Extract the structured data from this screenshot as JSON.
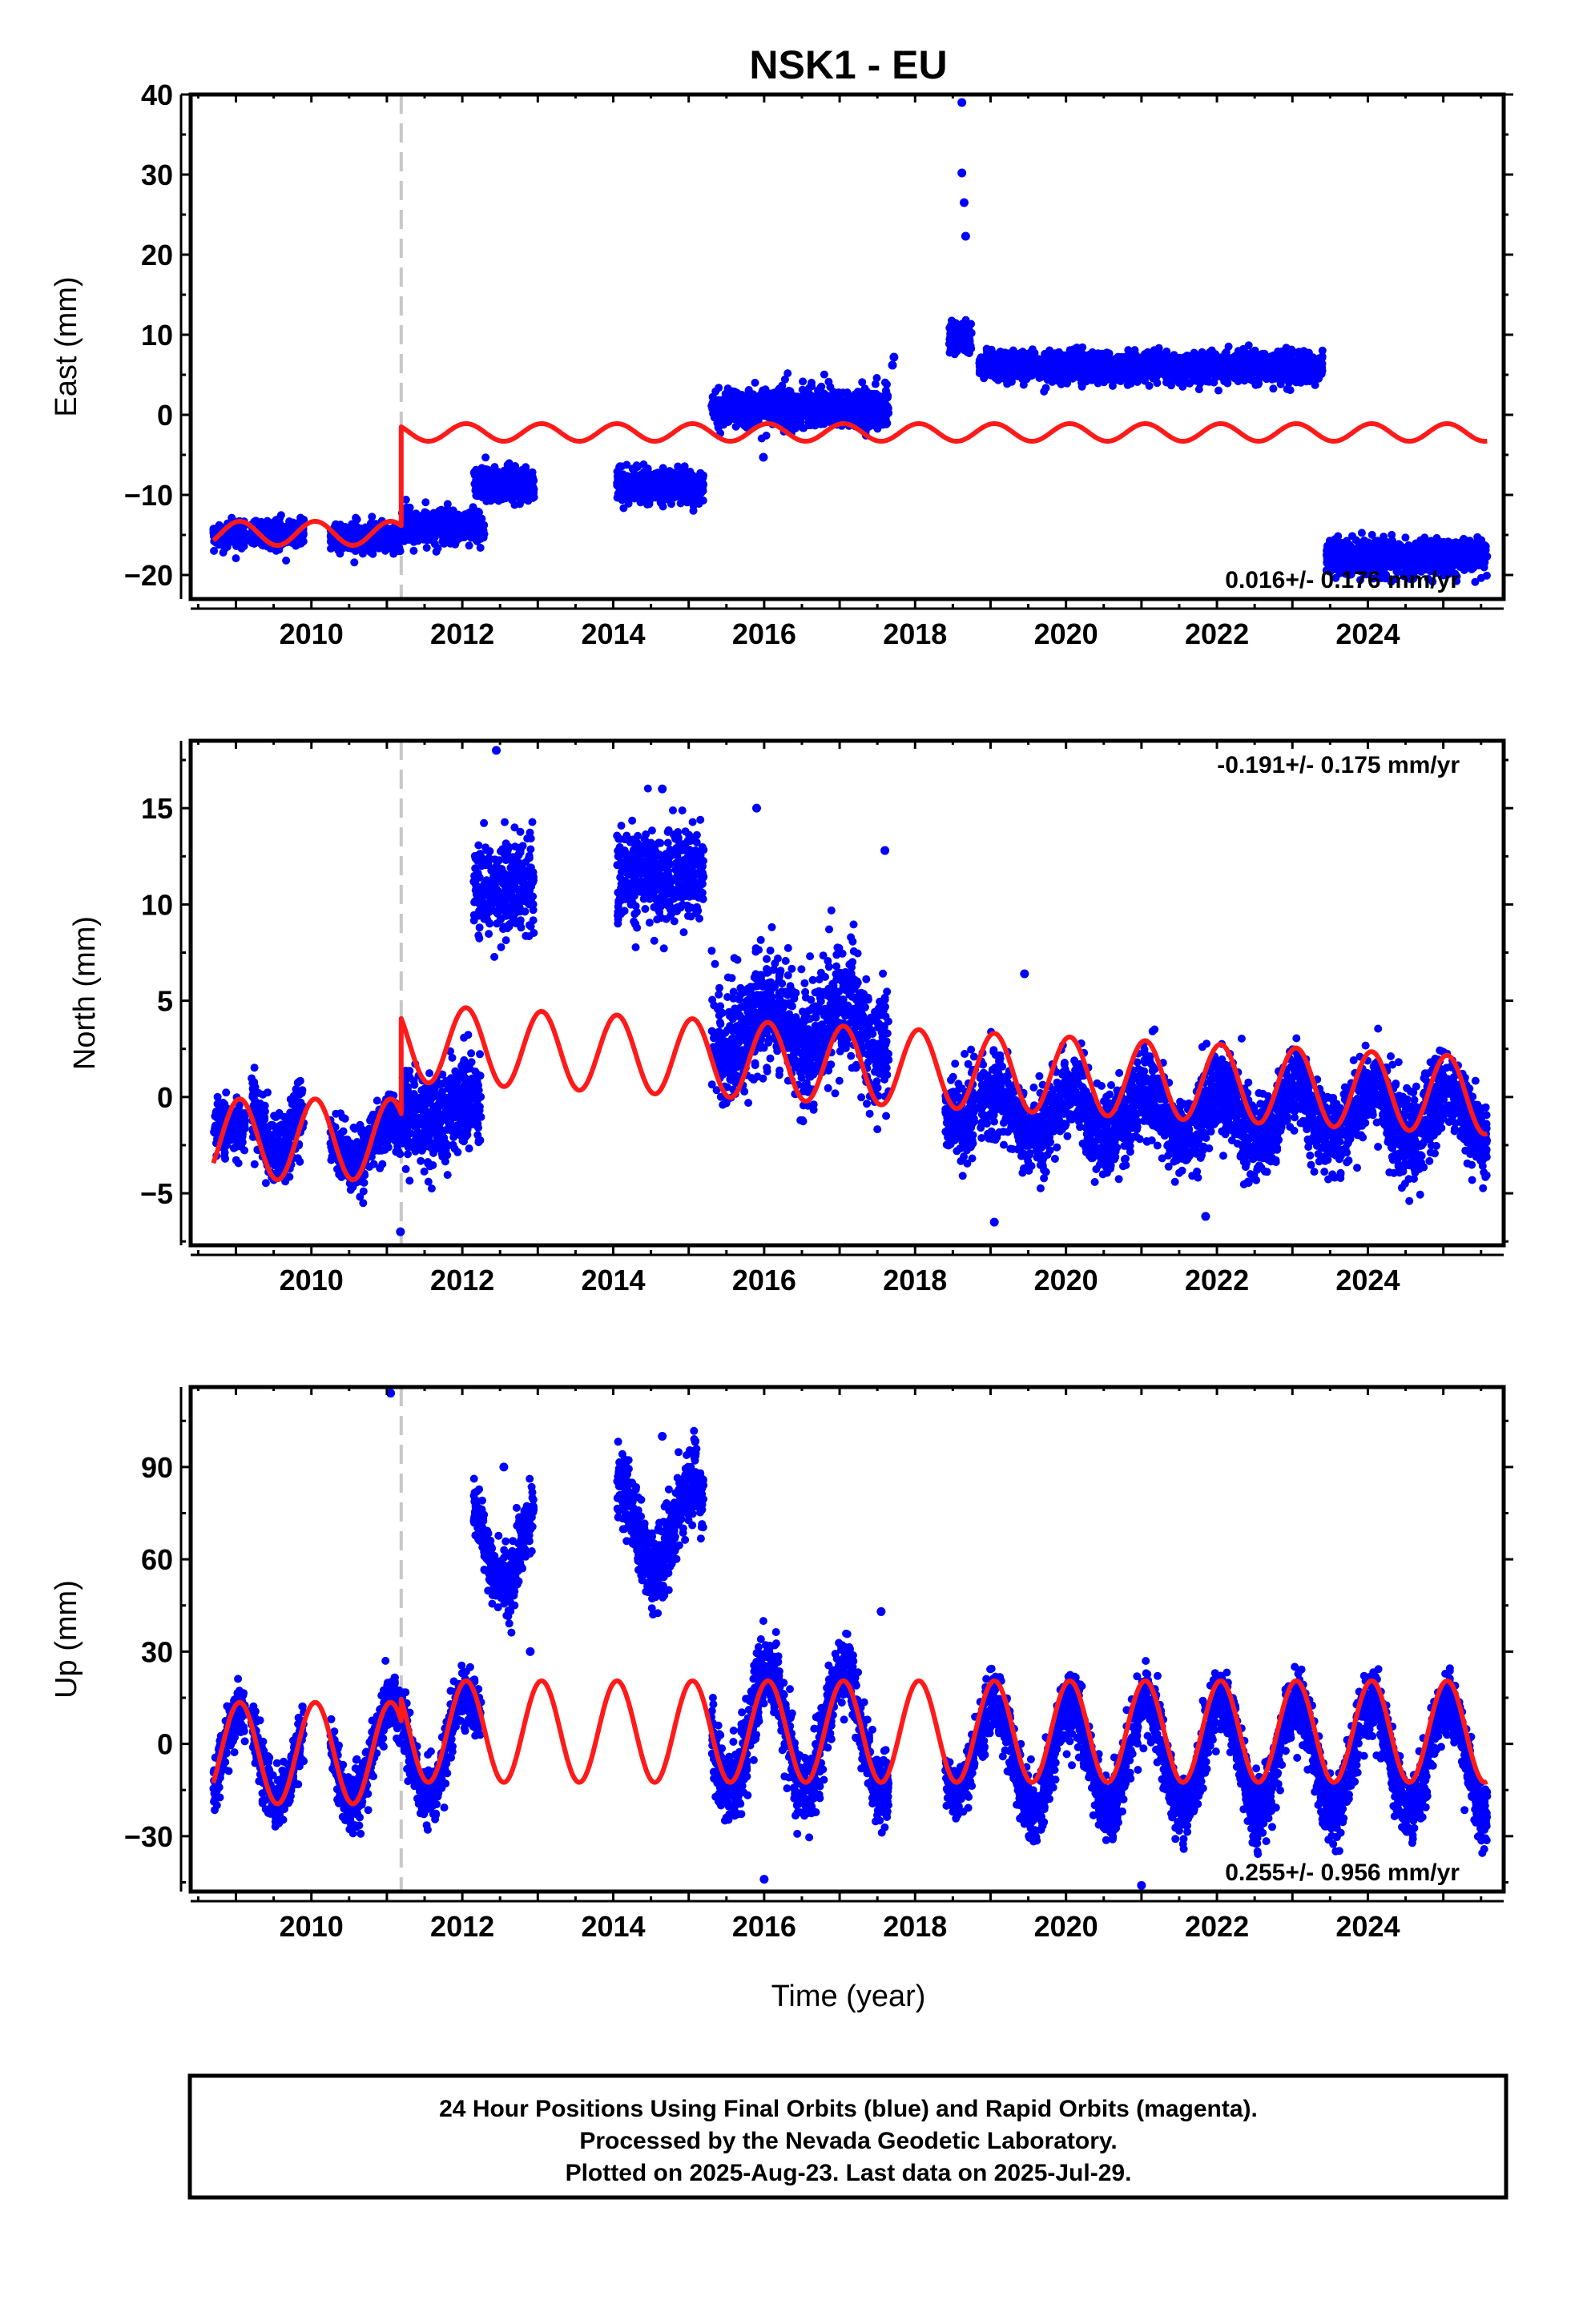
{
  "figure": {
    "title": "NSK1 - EU",
    "xlabel": "Time (year)",
    "footer": [
      "24 Hour Positions Using Final Orbits (blue) and Rapid Orbits (magenta).",
      "Processed by the Nevada Geodetic Laboratory.",
      "Plotted on 2025-Aug-23. Last data on 2025-Jul-29."
    ],
    "colors": {
      "data": "#0000ff",
      "model": "#ff1a1a",
      "event_line": "#c8c8c8"
    }
  },
  "chart_data": [
    {
      "type": "scatter",
      "panel": "east",
      "ylabel": "East (mm)",
      "rate_label": "0.016+/- 0.176 mm/yr",
      "rate_position": "bottom-right",
      "xlim": [
        2008.4,
        2025.8
      ],
      "ylim": [
        -23,
        40
      ],
      "x_ticks": [
        2010,
        2012,
        2014,
        2016,
        2018,
        2020,
        2022,
        2024
      ],
      "y_ticks": [
        -20,
        -10,
        0,
        10,
        20,
        30,
        40
      ],
      "event_line_x": 2011.19,
      "data_segments": [
        {
          "x_start": 2008.7,
          "x_end": 2009.12,
          "level": -15.0,
          "spread": 1.6
        },
        {
          "x_start": 2009.2,
          "x_end": 2009.9,
          "level": -14.8,
          "spread": 1.8
        },
        {
          "x_start": 2010.25,
          "x_end": 2011.18,
          "level": -15.3,
          "spread": 1.8
        },
        {
          "x_start": 2011.2,
          "x_end": 2012.3,
          "level": -14.0,
          "spread": 2.2
        },
        {
          "x_start": 2012.15,
          "x_end": 2012.95,
          "level": -8.5,
          "spread": 2.2
        },
        {
          "x_start": 2014.05,
          "x_end": 2015.2,
          "level": -8.8,
          "spread": 2.2
        },
        {
          "x_start": 2015.3,
          "x_end": 2017.65,
          "level": 0.8,
          "spread": 2.6
        },
        {
          "x_start": 2018.45,
          "x_end": 2018.75,
          "level": 9.5,
          "spread": 2.2
        },
        {
          "x_start": 2018.85,
          "x_end": 2023.4,
          "level": 6.0,
          "spread": 2.0
        },
        {
          "x_start": 2023.45,
          "x_end": 2025.58,
          "level": -17.8,
          "spread": 2.3
        }
      ],
      "outliers": [
        {
          "x": 2018.62,
          "y": 39
        },
        {
          "x": 2018.62,
          "y": 30.2
        },
        {
          "x": 2018.65,
          "y": 26.5
        },
        {
          "x": 2018.67,
          "y": 22.3
        },
        {
          "x": 2017.72,
          "y": 7.2
        },
        {
          "x": 2017.7,
          "y": 6.2
        },
        {
          "x": 2015.99,
          "y": -5.3
        }
      ],
      "model": {
        "segments": [
          {
            "x_start": 2008.7,
            "x_end": 2011.19,
            "base": -14.8,
            "amplitude": 1.5,
            "phase_year": 2008.8
          },
          {
            "x_start": 2011.19,
            "x_end": 2025.58,
            "base": -2.2,
            "amplitude": 1.1,
            "phase_year": 2008.8
          }
        ],
        "jump_x": 2011.19
      }
    },
    {
      "type": "scatter",
      "panel": "north",
      "ylabel": "North (mm)",
      "rate_label": "-0.191+/- 0.175 mm/yr",
      "rate_position": "top-right",
      "xlim": [
        2008.4,
        2025.8
      ],
      "ylim": [
        -7.7,
        18.5
      ],
      "x_ticks": [
        2010,
        2012,
        2014,
        2016,
        2018,
        2020,
        2022,
        2024
      ],
      "y_ticks": [
        -5,
        0,
        5,
        10,
        15
      ],
      "event_line_x": 2011.19,
      "data_segments": [
        {
          "x_start": 2008.7,
          "x_end": 2009.12,
          "level": -1.5,
          "spread": 1.4,
          "seasonal": 0.0
        },
        {
          "x_start": 2009.2,
          "x_end": 2009.9,
          "level": -1.2,
          "spread": 2.0,
          "seasonal": 1.6
        },
        {
          "x_start": 2010.25,
          "x_end": 2011.18,
          "level": -2.3,
          "spread": 1.6,
          "seasonal": 1.0
        },
        {
          "x_start": 2011.2,
          "x_end": 2012.25,
          "level": -0.8,
          "spread": 2.6,
          "seasonal": 0.6
        },
        {
          "x_start": 2012.15,
          "x_end": 2012.95,
          "level": 10.8,
          "spread": 2.8,
          "seasonal": 0.0
        },
        {
          "x_start": 2014.05,
          "x_end": 2015.2,
          "level": 11.6,
          "spread": 2.6,
          "seasonal": 0.0
        },
        {
          "x_start": 2015.3,
          "x_end": 2017.65,
          "level": 3.6,
          "spread": 3.2,
          "seasonal": 1.2
        },
        {
          "x_start": 2018.4,
          "x_end": 2018.8,
          "level": -0.6,
          "spread": 2.6,
          "seasonal": 0.6
        },
        {
          "x_start": 2018.85,
          "x_end": 2025.58,
          "level": -0.9,
          "spread": 2.4,
          "seasonal": 1.3
        }
      ],
      "outliers": [
        {
          "x": 2012.45,
          "y": 18.0
        },
        {
          "x": 2014.65,
          "y": 16.0
        },
        {
          "x": 2015.9,
          "y": 15.0
        },
        {
          "x": 2017.6,
          "y": 12.8
        },
        {
          "x": 2019.45,
          "y": 6.4
        },
        {
          "x": 2019.05,
          "y": -6.5
        },
        {
          "x": 2021.85,
          "y": -6.2
        },
        {
          "x": 2011.18,
          "y": -7.0
        }
      ],
      "model": {
        "segments": [
          {
            "x_start": 2008.7,
            "x_end": 2011.19,
            "base": -2.2,
            "amplitude": 2.1,
            "phase_year": 2008.8
          },
          {
            "x_start": 2011.19,
            "x_end": 2025.58,
            "base": 2.8,
            "amplitude": 2.0,
            "drift_per_year": -0.19,
            "phase_year": 2008.8
          }
        ],
        "jump_x": 2011.19
      }
    },
    {
      "type": "scatter",
      "panel": "up",
      "ylabel": "Up (mm)",
      "rate_label": "0.255+/- 0.956 mm/yr",
      "rate_position": "bottom-right",
      "xlim": [
        2008.4,
        2025.8
      ],
      "ylim": [
        -48,
        116
      ],
      "x_ticks": [
        2010,
        2012,
        2014,
        2016,
        2018,
        2020,
        2022,
        2024
      ],
      "y_ticks": [
        -30,
        0,
        30,
        60,
        90
      ],
      "event_line_x": 2011.19,
      "data_segments": [
        {
          "x_start": 2008.7,
          "x_end": 2009.12,
          "level": -6.0,
          "spread": 10,
          "seasonal": 16
        },
        {
          "x_start": 2009.2,
          "x_end": 2009.9,
          "level": -3.0,
          "spread": 10,
          "seasonal": 16
        },
        {
          "x_start": 2010.25,
          "x_end": 2011.18,
          "level": -3.0,
          "spread": 10,
          "seasonal": 16
        },
        {
          "x_start": 2011.2,
          "x_end": 2012.25,
          "level": 0.0,
          "spread": 10,
          "seasonal": 16
        },
        {
          "x_start": 2012.15,
          "x_end": 2012.95,
          "level": 66.0,
          "spread": 12,
          "seasonal": 14
        },
        {
          "x_start": 2014.05,
          "x_end": 2015.2,
          "level": 70.0,
          "spread": 14,
          "seasonal": 14
        },
        {
          "x_start": 2015.3,
          "x_end": 2017.65,
          "level": 4.0,
          "spread": 14,
          "seasonal": 20
        },
        {
          "x_start": 2018.4,
          "x_end": 2018.8,
          "level": 0.0,
          "spread": 10,
          "seasonal": 16
        },
        {
          "x_start": 2018.85,
          "x_end": 2025.58,
          "level": -4.0,
          "spread": 12,
          "seasonal": 18
        }
      ],
      "outliers": [
        {
          "x": 2011.05,
          "y": 114
        },
        {
          "x": 2014.65,
          "y": 100
        },
        {
          "x": 2012.55,
          "y": 90
        },
        {
          "x": 2012.9,
          "y": 30
        },
        {
          "x": 2016.0,
          "y": -44
        },
        {
          "x": 2021.0,
          "y": -46
        },
        {
          "x": 2017.55,
          "y": 43
        }
      ],
      "model": {
        "segments": [
          {
            "x_start": 2008.7,
            "x_end": 2011.19,
            "base": -3.0,
            "amplitude": 16.5,
            "phase_year": 2008.8
          },
          {
            "x_start": 2011.19,
            "x_end": 2025.58,
            "base": 4.0,
            "amplitude": 16.5,
            "phase_year": 2008.8
          }
        ],
        "jump_x": 2011.19
      }
    }
  ]
}
